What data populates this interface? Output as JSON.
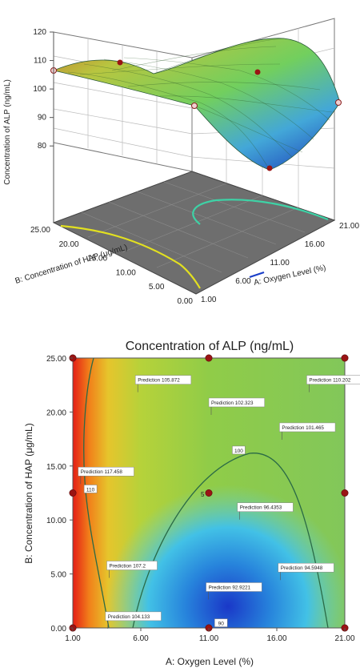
{
  "chart_data": [
    {
      "type": "surface3d",
      "zlabel": "Concentration of ALP (ng/mL)",
      "xlabel": "A: Oxygen Level (%)",
      "ylabel": "B: Concentration of HAP (μg/mL)",
      "x_ticks": [
        "1.00",
        "6.00",
        "11.00",
        "16.00",
        "21.00"
      ],
      "y_ticks": [
        "0.00",
        "5.00",
        "10.00",
        "15.00",
        "20.00",
        "25.00"
      ],
      "z_ticks": [
        "80",
        "90",
        "100",
        "110",
        "120"
      ],
      "xlim": [
        1,
        21
      ],
      "ylim": [
        0,
        25
      ],
      "zlim": [
        75,
        120
      ],
      "grid": true,
      "colormap": [
        "#1530b8",
        "#25a0e0",
        "#7fd0b8",
        "#9ed84a",
        "#c8d838",
        "#e06a1a"
      ]
    },
    {
      "type": "contour",
      "title": "Concentration of ALP (ng/mL)",
      "xlabel": "A: Oxygen Level (%)",
      "ylabel": "B: Concentration of HAP (μg/mL)",
      "x_ticks": [
        "1.00",
        "6.00",
        "11.00",
        "16.00",
        "21.00"
      ],
      "y_ticks": [
        "0.00",
        "5.00",
        "10.00",
        "15.00",
        "20.00",
        "25.00"
      ],
      "xlim": [
        1,
        21
      ],
      "ylim": [
        0,
        25
      ],
      "contour_labels": [
        {
          "text": "110",
          "x": 2.3,
          "y": 12.8
        },
        {
          "text": "100",
          "x": 13.2,
          "y": 16.4
        },
        {
          "text": "90",
          "x": 11.9,
          "y": 0.4
        }
      ],
      "predictions": [
        {
          "text": "Prediction  105.872",
          "x": 5.6,
          "y": 22.8
        },
        {
          "text": "Prediction  110.202",
          "x": 18.2,
          "y": 22.8
        },
        {
          "text": "Prediction  102.323",
          "x": 11.0,
          "y": 20.7
        },
        {
          "text": "Prediction  101.465",
          "x": 16.2,
          "y": 18.4
        },
        {
          "text": "Prediction  117.458",
          "x": 1.4,
          "y": 14.3
        },
        {
          "text": "Prediction  96.4353",
          "x": 13.1,
          "y": 11.0
        },
        {
          "text": "Prediction  107.2",
          "x": 3.5,
          "y": 5.6
        },
        {
          "text": "Prediction  94.5948",
          "x": 16.1,
          "y": 5.4
        },
        {
          "text": "Prediction  92.9221",
          "x": 10.8,
          "y": 3.6
        },
        {
          "text": "Prediction  104.133",
          "x": 3.4,
          "y": 0.9
        }
      ],
      "design_points": [
        {
          "x": 1,
          "y": 0
        },
        {
          "x": 11,
          "y": 0
        },
        {
          "x": 21,
          "y": 0
        },
        {
          "x": 1,
          "y": 12.5
        },
        {
          "x": 11,
          "y": 12.5
        },
        {
          "x": 21,
          "y": 12.5
        },
        {
          "x": 1,
          "y": 25
        },
        {
          "x": 11,
          "y": 25
        },
        {
          "x": 21,
          "y": 25
        }
      ],
      "center_point_count": "5"
    }
  ]
}
